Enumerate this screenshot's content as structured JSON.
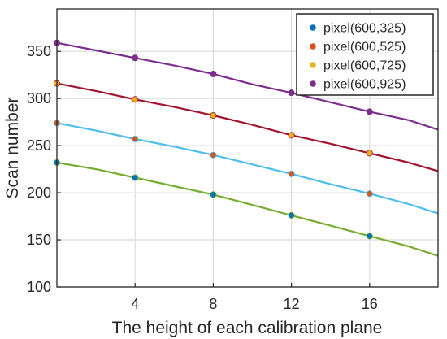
{
  "chart_data": {
    "type": "line",
    "xlabel": "The height of each calibration plane",
    "ylabel": "Scan number",
    "xlim": [
      0,
      19.5
    ],
    "ylim": [
      100,
      395
    ],
    "xticks": [
      4,
      8,
      12,
      16
    ],
    "yticks": [
      100,
      150,
      200,
      250,
      300,
      350
    ],
    "grid": true,
    "legend": {
      "position": "top-right",
      "entries": [
        {
          "label": "pixel(600,325)",
          "color": "#0072BD"
        },
        {
          "label": "pixel(600,525)",
          "color": "#D95319"
        },
        {
          "label": "pixel(600,725)",
          "color": "#EDB120"
        },
        {
          "label": "pixel(600,925)",
          "color": "#7E2F8E"
        }
      ]
    },
    "series": [
      {
        "color": "#7E2F8E",
        "line": {
          "x": [
            0,
            2,
            4,
            6,
            8,
            10,
            12,
            14,
            16,
            18,
            19.5
          ],
          "y": [
            359,
            351,
            343,
            335,
            326,
            315,
            306,
            296,
            286,
            277,
            267
          ]
        },
        "points": {
          "x": [
            0,
            4,
            8,
            12,
            16
          ],
          "y": [
            359,
            343,
            326,
            306,
            286
          ]
        }
      },
      {
        "color": "#A2142F",
        "line": {
          "x": [
            0,
            2,
            4,
            6,
            8,
            10,
            12,
            14,
            16,
            18,
            19.5
          ],
          "y": [
            316,
            308,
            299,
            291,
            282,
            272,
            261,
            252,
            242,
            232,
            223
          ]
        },
        "points": {
          "x": [
            0,
            4,
            8,
            12,
            16
          ],
          "y": [
            316,
            299,
            282,
            261,
            242
          ]
        }
      },
      {
        "color": "#4DBEEE",
        "line": {
          "x": [
            0,
            2,
            4,
            6,
            8,
            10,
            12,
            14,
            16,
            18,
            19.5
          ],
          "y": [
            274,
            266,
            257,
            249,
            240,
            230,
            220,
            209,
            199,
            188,
            178
          ]
        },
        "points": {
          "x": [
            0,
            4,
            8,
            12,
            16
          ],
          "y": [
            274,
            257,
            240,
            220,
            199
          ]
        }
      },
      {
        "color": "#77AC30",
        "line": {
          "x": [
            0,
            2,
            4,
            6,
            8,
            10,
            12,
            14,
            16,
            18,
            19.5
          ],
          "y": [
            232,
            225,
            216,
            207,
            198,
            187,
            176,
            165,
            154,
            143,
            133
          ]
        },
        "points": {
          "x": [
            0,
            4,
            8,
            12,
            16
          ],
          "y": [
            232,
            216,
            198,
            176,
            154
          ]
        }
      }
    ],
    "marker_colors": [
      "#7E2F8E",
      "#EDB120",
      "#D95319",
      "#0072BD"
    ]
  }
}
